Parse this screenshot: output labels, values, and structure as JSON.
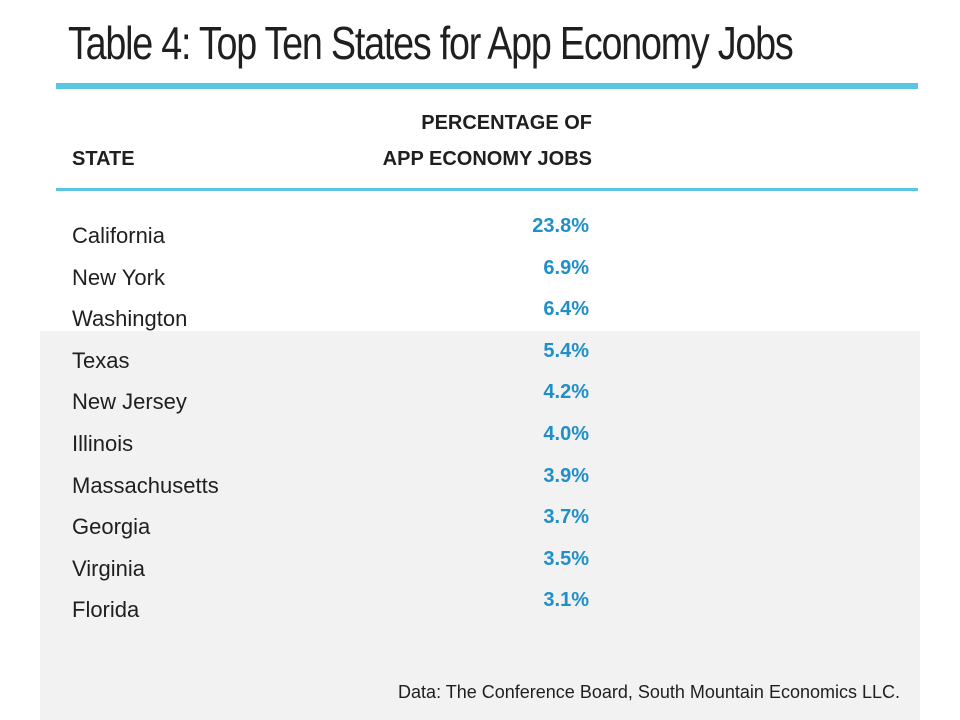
{
  "title": "Table 4: Top Ten States for App Economy Jobs",
  "columns": {
    "state_header": "STATE",
    "pct_header_line1": "PERCENTAGE OF",
    "pct_header_line2": "APP ECONOMY JOBS"
  },
  "rows": [
    {
      "state": "California",
      "value": "23.8%"
    },
    {
      "state": "New York",
      "value": "6.9%"
    },
    {
      "state": "Washington",
      "value": "6.4%"
    },
    {
      "state": "Texas",
      "value": "5.4%"
    },
    {
      "state": "New Jersey",
      "value": "4.2%"
    },
    {
      "state": "Illinois",
      "value": "4.0%"
    },
    {
      "state": "Massachusetts",
      "value": "3.9%"
    },
    {
      "state": "Georgia",
      "value": "3.7%"
    },
    {
      "state": "Virginia",
      "value": "3.5%"
    },
    {
      "state": "Florida",
      "value": "3.1%"
    }
  ],
  "source": "Data: The Conference Board, South Mountain Economics LLC.",
  "colors": {
    "accent_rule": "#5bc6e3",
    "value_text": "#1f8fc8",
    "panel_background": "#f2f2f2"
  },
  "chart_data": {
    "type": "table",
    "title": "Table 4: Top Ten States for App Economy Jobs",
    "columns": [
      "STATE",
      "PERCENTAGE OF APP ECONOMY JOBS"
    ],
    "categories": [
      "California",
      "New York",
      "Washington",
      "Texas",
      "New Jersey",
      "Illinois",
      "Massachusetts",
      "Georgia",
      "Virginia",
      "Florida"
    ],
    "values": [
      23.8,
      6.9,
      6.4,
      5.4,
      4.2,
      4.0,
      3.9,
      3.7,
      3.5,
      3.1
    ],
    "unit": "%",
    "source": "Data: The Conference Board, South Mountain Economics LLC."
  }
}
